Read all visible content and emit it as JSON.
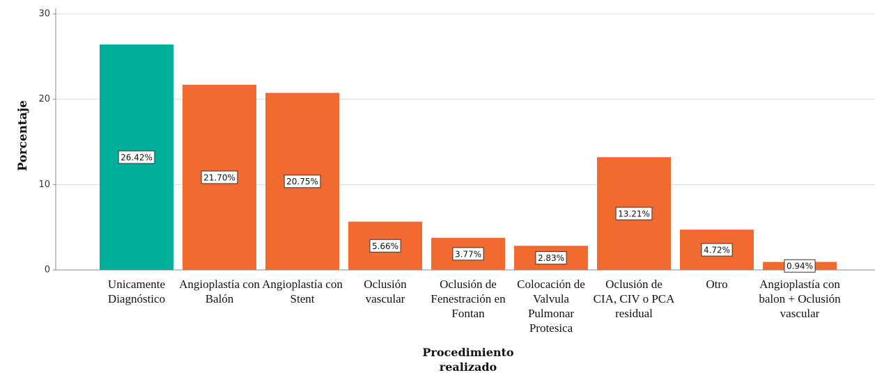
{
  "chart_data": {
    "type": "bar",
    "x_label": "Procedimiento realizado",
    "y_label": "Porcentaje",
    "categories": [
      "Unicamente Diagnóstico",
      "Angioplastía con Balón",
      "Angioplastía con Stent",
      "Oclusión vascular",
      "Oclusión de Fenestración en Fontan",
      "Colocación de Valvula Pulmonar Protesica",
      "Oclusión de CIA, CIV o PCA residual",
      "Otro",
      "Angioplastía con balon + Oclusión vascular"
    ],
    "values": [
      26.42,
      21.7,
      20.75,
      5.66,
      3.77,
      2.83,
      13.21,
      4.72,
      0.94
    ],
    "value_labels": [
      "26.42%",
      "21.70%",
      "20.75%",
      "5.66%",
      "3.77%",
      "2.83%",
      "13.21%",
      "4.72%",
      "0.94%"
    ],
    "colors": [
      "#00b09b",
      "#f26a30",
      "#f26a30",
      "#f26a30",
      "#f26a30",
      "#f26a30",
      "#f26a30",
      "#f26a30",
      "#f26a30"
    ],
    "ylim": [
      0,
      30
    ],
    "yticks": [
      0,
      10,
      20,
      30
    ],
    "grid": true
  }
}
